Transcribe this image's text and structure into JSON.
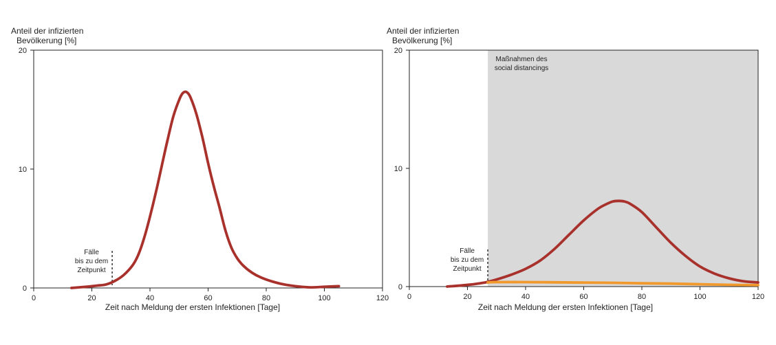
{
  "chart_data": [
    {
      "type": "line",
      "ylabel_lines": [
        "Anteil der infizierten",
        "Bevölkerung [%]"
      ],
      "xlabel": "Zeit nach Meldung der ersten Infektionen [Tage]",
      "xlim": [
        0,
        120
      ],
      "ylim": [
        0,
        20
      ],
      "xticks": [
        "0",
        "20",
        "40",
        "60",
        "80",
        "100",
        "120"
      ],
      "yticks": [
        "0",
        "10",
        "20"
      ],
      "grid": false,
      "annotation_lines": [
        "Fälle",
        "bis zu dem",
        "Zeitpunkt"
      ],
      "marker_x": 27,
      "series": [
        {
          "color": "#a8312c",
          "x": [
            13,
            18,
            22,
            25,
            28,
            31,
            34,
            36,
            38,
            40,
            42,
            44,
            46,
            48,
            50,
            51,
            52,
            53,
            54,
            56,
            58,
            60,
            62,
            64,
            66,
            68,
            70,
            72,
            75,
            78,
            82,
            86,
            90,
            95,
            100,
            105
          ],
          "y": [
            0,
            0.1,
            0.2,
            0.3,
            0.6,
            1.1,
            1.9,
            2.8,
            4.2,
            6.0,
            8.0,
            10.2,
            12.4,
            14.4,
            15.8,
            16.3,
            16.5,
            16.4,
            16.0,
            14.6,
            12.7,
            10.5,
            8.5,
            6.7,
            4.8,
            3.4,
            2.5,
            1.9,
            1.3,
            0.9,
            0.55,
            0.3,
            0.15,
            0.05,
            0.1,
            0.15
          ]
        }
      ]
    },
    {
      "type": "line",
      "ylabel_lines": [
        "Anteil der infizierten",
        "Bevölkerung [%]"
      ],
      "xlabel": "Zeit nach Meldung der ersten Infektionen [Tage]",
      "xlim": [
        0,
        120
      ],
      "ylim": [
        0,
        20
      ],
      "xticks": [
        "0",
        "20",
        "40",
        "60",
        "80",
        "100",
        "120"
      ],
      "yticks": [
        "0",
        "10",
        "20"
      ],
      "grid": false,
      "annotation_lines": [
        "Fälle",
        "bis zu dem",
        "Zeitpunkt"
      ],
      "marker_x": 27,
      "shaded_region": {
        "x_start": 27,
        "x_end": 120,
        "color": "#d9d9d9",
        "label_lines": [
          "Maßnahmen des",
          "social distancings"
        ]
      },
      "series": [
        {
          "color": "#a8312c",
          "x": [
            13,
            18,
            22,
            25,
            27,
            30,
            35,
            40,
            45,
            50,
            55,
            60,
            65,
            68,
            70,
            72,
            74,
            76,
            80,
            85,
            90,
            95,
            100,
            105,
            110,
            115,
            120
          ],
          "y": [
            0,
            0.1,
            0.2,
            0.3,
            0.4,
            0.6,
            1.0,
            1.5,
            2.2,
            3.2,
            4.4,
            5.6,
            6.6,
            7.0,
            7.2,
            7.25,
            7.2,
            7.0,
            6.3,
            5.0,
            3.7,
            2.6,
            1.7,
            1.1,
            0.7,
            0.45,
            0.35
          ]
        },
        {
          "color": "#f2992e",
          "x": [
            27,
            30,
            40,
            50,
            60,
            70,
            80,
            90,
            100,
            110,
            120
          ],
          "y": [
            0.35,
            0.38,
            0.38,
            0.36,
            0.34,
            0.32,
            0.28,
            0.25,
            0.2,
            0.15,
            0.12
          ]
        }
      ]
    }
  ]
}
